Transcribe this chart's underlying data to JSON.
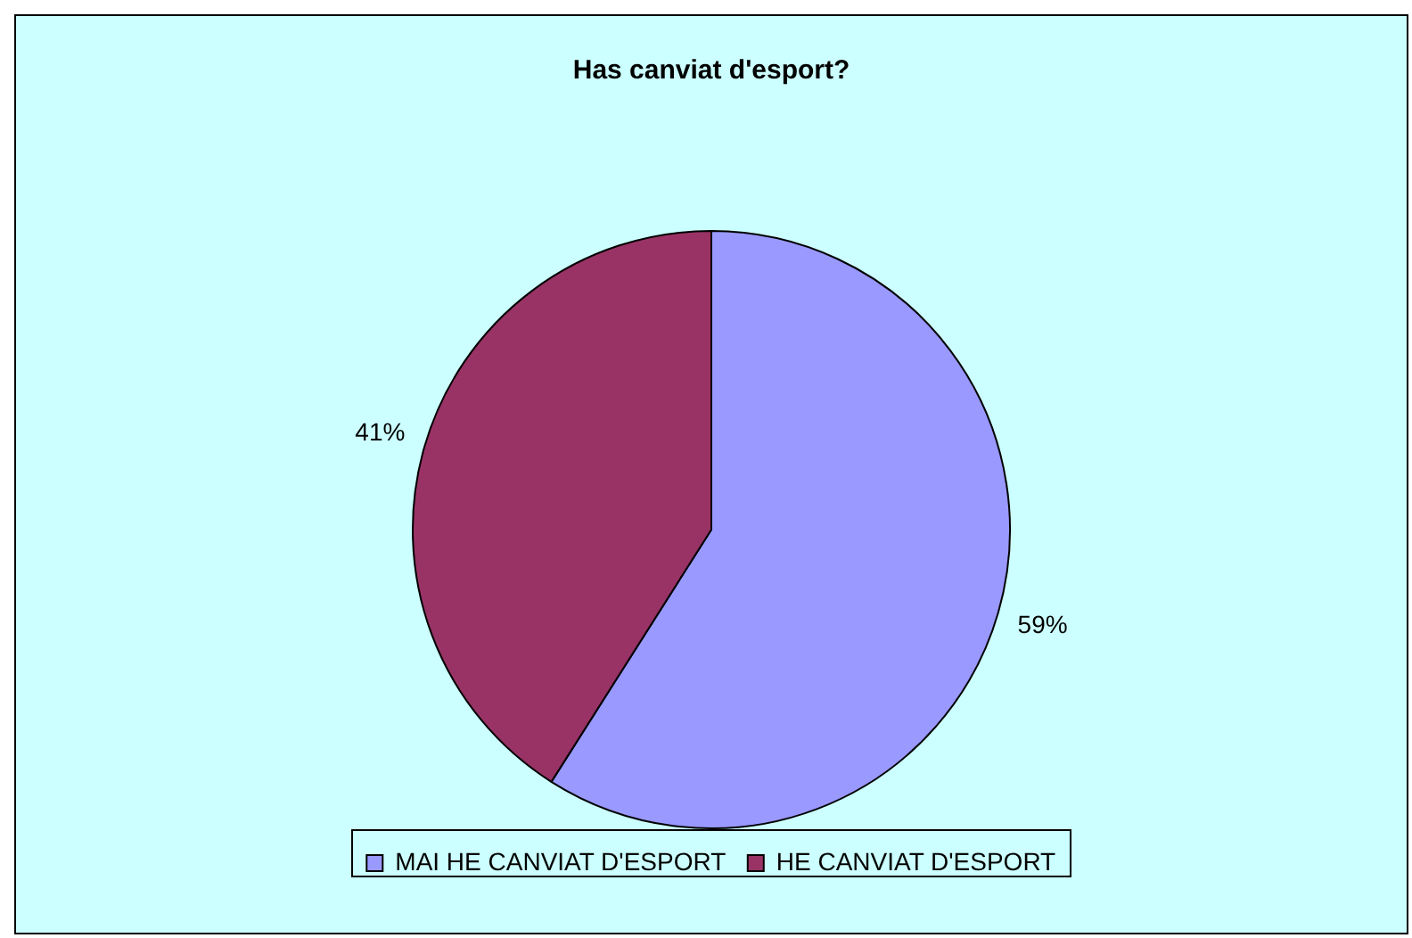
{
  "chart_data": {
    "type": "pie",
    "title": "Has canviat d'esport?",
    "categories": [
      "MAI HE CANVIAT D'ESPORT",
      "HE CANVIAT D'ESPORT"
    ],
    "values": [
      59,
      41
    ],
    "value_labels": [
      "59%",
      "41%"
    ],
    "colors": [
      "#9999ff",
      "#993366"
    ],
    "legend": "bottom"
  }
}
